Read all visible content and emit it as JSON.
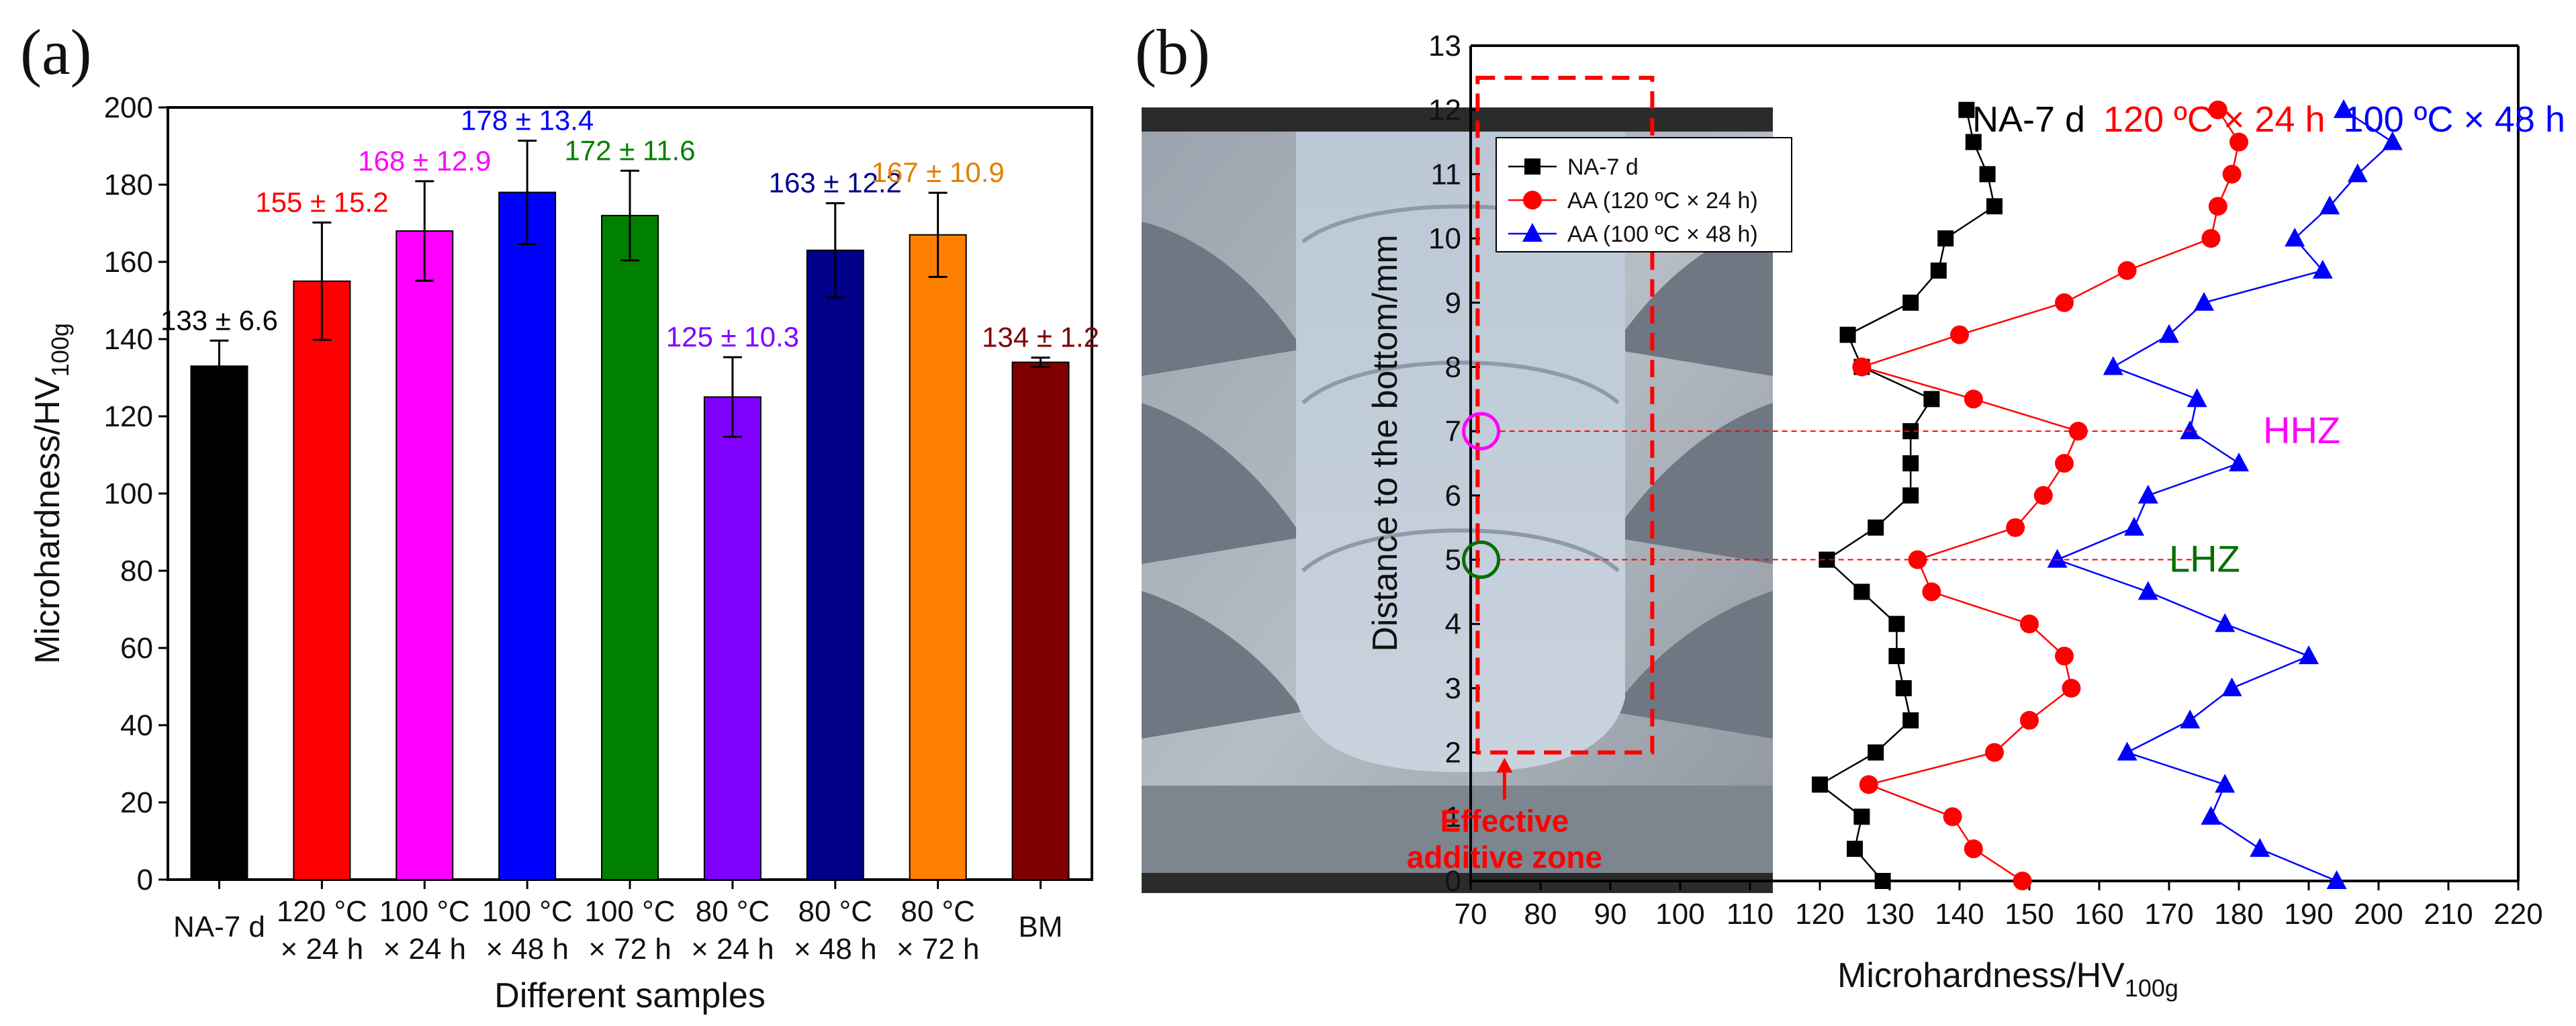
{
  "figure_labels": {
    "a": "(a)",
    "b": "(b)"
  },
  "chart_data": [
    {
      "type": "bar",
      "title": "",
      "xlabel": "Different samples",
      "ylabel": "Microhardness/HV",
      "ylabel_sub": "100g",
      "ylim": [
        0,
        200
      ],
      "yticks": [
        "0",
        "20",
        "40",
        "60",
        "80",
        "100",
        "120",
        "140",
        "160",
        "180",
        "200"
      ],
      "categories": [
        {
          "line1": "NA-7 d",
          "line2": ""
        },
        {
          "line1": "120 °C",
          "line2": "× 24 h"
        },
        {
          "line1": "100 °C",
          "line2": "× 24 h"
        },
        {
          "line1": "100 °C",
          "line2": "× 48 h"
        },
        {
          "line1": "100 °C",
          "line2": "× 72 h"
        },
        {
          "line1": "80 °C",
          "line2": "× 24 h"
        },
        {
          "line1": "80 °C",
          "line2": "× 48 h"
        },
        {
          "line1": "80 °C",
          "line2": "× 72 h"
        },
        {
          "line1": "BM",
          "line2": ""
        }
      ],
      "values": [
        133,
        155,
        168,
        178,
        172,
        125,
        163,
        167,
        134
      ],
      "errors": [
        6.6,
        15.2,
        12.9,
        13.4,
        11.6,
        10.3,
        12.2,
        10.9,
        1.2
      ],
      "value_labels": [
        "133 ± 6.6",
        "155 ± 15.2",
        "168 ± 12.9",
        "178 ± 13.4",
        "172 ± 11.6",
        "125 ± 10.3",
        "163 ± 12.2",
        "167 ± 10.9",
        "134 ± 1.2"
      ],
      "colors": [
        "#000000",
        "#ff0000",
        "#ff00ff",
        "#0000ff",
        "#008000",
        "#8000ff",
        "#00008b",
        "#ff8000",
        "#800000"
      ],
      "label_colors": [
        "#000000",
        "#ff0000",
        "#ff00ff",
        "#0000ff",
        "#008000",
        "#8000ff",
        "#00008b",
        "#e08000",
        "#800000"
      ]
    },
    {
      "type": "line",
      "title": "",
      "xlabel": "Microhardness/HV",
      "xlabel_sub": "100g",
      "ylabel": "Distance to the bottom/mm",
      "xlim": [
        70,
        220
      ],
      "ylim": [
        0,
        13
      ],
      "xticks": [
        "70",
        "80",
        "90",
        "100",
        "110",
        "120",
        "130",
        "140",
        "150",
        "160",
        "170",
        "180",
        "190",
        "200",
        "210",
        "220"
      ],
      "yticks": [
        "0",
        "1",
        "2",
        "3",
        "4",
        "5",
        "6",
        "7",
        "8",
        "9",
        "10",
        "11",
        "12",
        "13"
      ],
      "header": [
        {
          "text": "NA-7 d",
          "color": "#000000"
        },
        {
          "text": "120 ºC × 24 h",
          "color": "#ff0000"
        },
        {
          "text": "100 ºC × 48 h",
          "color": "#0000ff"
        }
      ],
      "y": [
        0,
        0.5,
        1,
        1.5,
        2,
        2.5,
        3,
        3.5,
        4,
        4.5,
        5,
        5.5,
        6,
        6.5,
        7,
        7.5,
        8,
        8.5,
        9,
        9.5,
        10,
        10.5,
        11,
        11.5,
        12
      ],
      "series": [
        {
          "name": "NA-7 d",
          "color": "#000000",
          "marker": "square",
          "x": [
            129,
            125,
            126,
            120,
            128,
            133,
            132,
            131,
            131,
            126,
            121,
            128,
            133,
            133,
            133,
            136,
            126,
            124,
            133,
            137,
            138,
            145,
            144,
            142,
            141
          ]
        },
        {
          "name": "AA (120 ºC × 24 h)",
          "color": "#ff0000",
          "marker": "circle",
          "x": [
            149,
            142,
            139,
            127,
            145,
            150,
            156,
            155,
            150,
            136,
            134,
            148,
            152,
            155,
            157,
            142,
            126,
            140,
            155,
            164,
            176,
            177,
            179,
            180,
            177
          ]
        },
        {
          "name": "AA (100 ºC × 48 h)",
          "color": "#0000ff",
          "marker": "triangle",
          "x": [
            194,
            183,
            176,
            178,
            164,
            173,
            179,
            190,
            178,
            167,
            154,
            165,
            167,
            180,
            173,
            174,
            162,
            170,
            175,
            192,
            188,
            193,
            197,
            202,
            195
          ]
        }
      ],
      "annotations": {
        "hhz": {
          "text": "HHZ",
          "color": "#ff00ff",
          "y": 7
        },
        "lhz": {
          "text": "LHZ",
          "color": "#007000",
          "y": 5
        },
        "effective_zone": {
          "line1": "Effective",
          "line2": "additive zone",
          "color": "#ff0000",
          "x_range": [
            71,
            96
          ],
          "y_range": [
            2,
            12.5
          ]
        }
      }
    }
  ]
}
